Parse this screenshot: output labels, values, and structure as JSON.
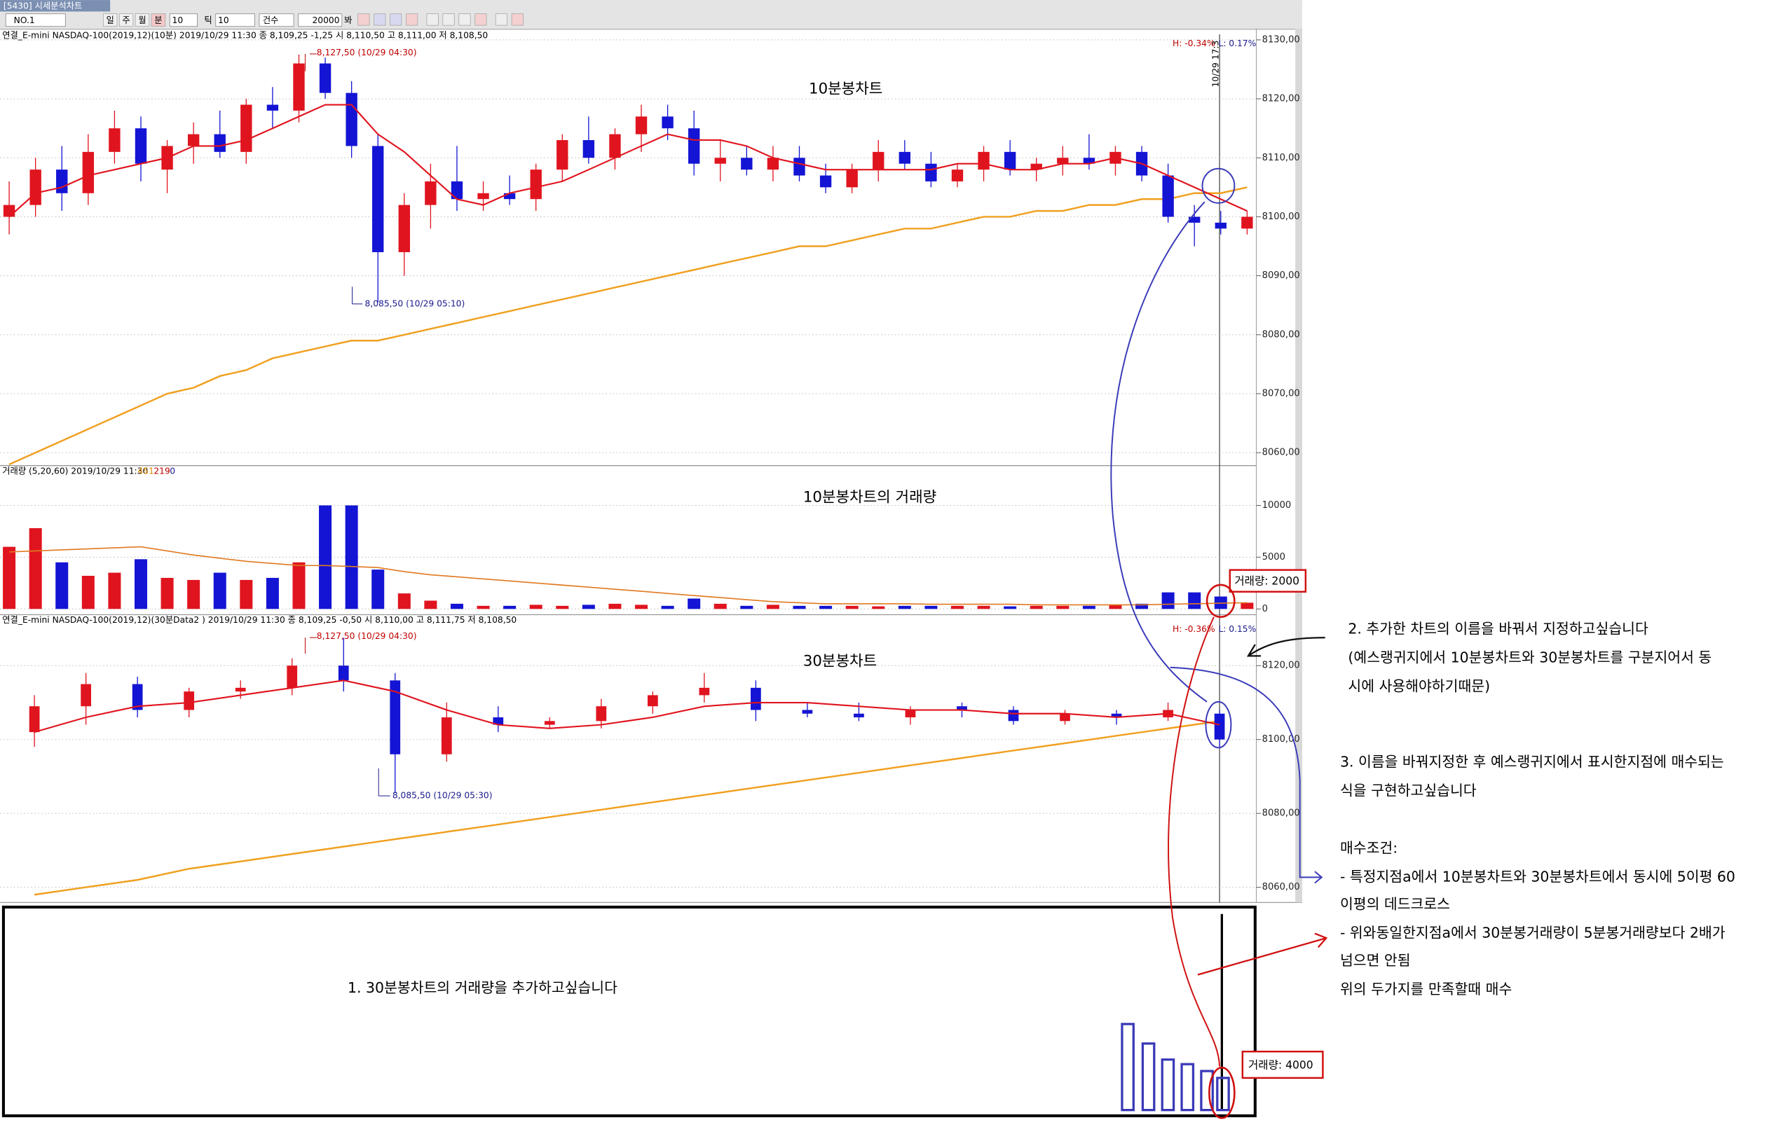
{
  "window_title": "[5430] 시세분석차트",
  "toolbar": {
    "code": "NO.1",
    "buttons": [
      "일",
      "주",
      "월",
      "분"
    ],
    "minute": "10",
    "tick_button": "틱",
    "tick": "10",
    "count_mode": "건수",
    "count": "20000",
    "view_button": "봐"
  },
  "price10": {
    "header": "연결_E-mini NASDAQ-100(2019,12)(10분) 2019/10/29 11:30  종 8,109,25 -1,25   시 8,110,50 고 8,111,00 저 8,108,50",
    "title": "10분봉차트",
    "high_label": "8,127,50 (10/29 04:30)",
    "low_label": "8,085,50 (10/29 05:10)",
    "h_pct": "H: -0.34%",
    "l_pct": "L: 0.17%",
    "cursor_time": "10/29 17:3",
    "ylim": [
      8058,
      8131.5
    ],
    "yticks": [
      {
        "value": 8130,
        "label": "8130,00"
      },
      {
        "value": 8120,
        "label": "8120,00"
      },
      {
        "value": 8110,
        "label": "8110,00"
      },
      {
        "value": 8100,
        "label": "8100,00"
      },
      {
        "value": 8090,
        "label": "8090,00"
      },
      {
        "value": 8080,
        "label": "8080,00"
      },
      {
        "value": 8070,
        "label": "8070,00"
      },
      {
        "value": 8060,
        "label": "8060,00"
      }
    ],
    "candles": [
      [
        8100,
        8106,
        8097,
        8102
      ],
      [
        8102,
        8110,
        8100,
        8108
      ],
      [
        8108,
        8112,
        8101,
        8104
      ],
      [
        8104,
        8114,
        8102,
        8111
      ],
      [
        8111,
        8118,
        8109,
        8115
      ],
      [
        8115,
        8117,
        8106,
        8109
      ],
      [
        8108,
        8113,
        8104,
        8112
      ],
      [
        8112,
        8116,
        8109,
        8114
      ],
      [
        8114,
        8118,
        8110,
        8111
      ],
      [
        8111,
        8120,
        8109,
        8119
      ],
      [
        8119,
        8122,
        8115,
        8118
      ],
      [
        8118,
        8127.5,
        8116,
        8126
      ],
      [
        8126,
        8127,
        8120,
        8121
      ],
      [
        8121,
        8123,
        8110,
        8112
      ],
      [
        8112,
        8114,
        8085.5,
        8094
      ],
      [
        8094,
        8104,
        8090,
        8102
      ],
      [
        8102,
        8109,
        8098,
        8106
      ],
      [
        8106,
        8112,
        8101,
        8103
      ],
      [
        8103,
        8106,
        8101,
        8104
      ],
      [
        8104,
        8107,
        8102,
        8103
      ],
      [
        8103,
        8109,
        8101,
        8108
      ],
      [
        8108,
        8114,
        8106,
        8113
      ],
      [
        8113,
        8117,
        8109,
        8110
      ],
      [
        8110,
        8115,
        8108,
        8114
      ],
      [
        8114,
        8119,
        8111,
        8117
      ],
      [
        8117,
        8119,
        8113,
        8115
      ],
      [
        8115,
        8118,
        8107,
        8109
      ],
      [
        8109,
        8113,
        8106,
        8110
      ],
      [
        8110,
        8112,
        8107,
        8108
      ],
      [
        8108,
        8112,
        8106,
        8110
      ],
      [
        8110,
        8112,
        8106,
        8107
      ],
      [
        8107,
        8109,
        8104,
        8105
      ],
      [
        8105,
        8109,
        8104,
        8108
      ],
      [
        8108,
        8113,
        8106,
        8111
      ],
      [
        8111,
        8113,
        8108,
        8109
      ],
      [
        8109,
        8111,
        8105,
        8106
      ],
      [
        8106,
        8109,
        8105,
        8108
      ],
      [
        8108,
        8112,
        8106,
        8111
      ],
      [
        8111,
        8113,
        8107,
        8108
      ],
      [
        8108,
        8110,
        8106,
        8109
      ],
      [
        8109,
        8112,
        8107,
        8110
      ],
      [
        8110,
        8114,
        8108,
        8109
      ],
      [
        8109,
        8112,
        8107,
        8111
      ],
      [
        8111,
        8112,
        8106,
        8107
      ],
      [
        8107,
        8109,
        8099,
        8100
      ],
      [
        8100,
        8102,
        8095,
        8099
      ],
      [
        8099,
        8101,
        8097,
        8098
      ],
      [
        8098,
        8101,
        8097,
        8100
      ]
    ],
    "ma_short": [
      8100,
      8104,
      8105,
      8107,
      8108,
      8109,
      8110,
      8112,
      8112,
      8113,
      8115,
      8117,
      8119,
      8119,
      8114,
      8111,
      8107,
      8103,
      8102,
      8104,
      8105,
      8106,
      8108,
      8110,
      8112,
      8114,
      8113,
      8113,
      8112,
      8110,
      8109,
      8108,
      8108,
      8108,
      8108,
      8108,
      8109,
      8109,
      8108,
      8108,
      8109,
      8109,
      8110,
      8109,
      8107,
      8105,
      8103,
      8101
    ],
    "ma_long": [
      8058,
      8060,
      8062,
      8064,
      8066,
      8068,
      8070,
      8071,
      8073,
      8074,
      8076,
      8077,
      8078,
      8079,
      8079,
      8080,
      8081,
      8082,
      8083,
      8084,
      8085,
      8086,
      8087,
      8088,
      8089,
      8090,
      8091,
      8092,
      8093,
      8094,
      8095,
      8095,
      8096,
      8097,
      8098,
      8098,
      8099,
      8100,
      8100,
      8101,
      8101,
      8102,
      8102,
      8103,
      8103,
      8104,
      8104,
      8105
    ]
  },
  "volume10": {
    "header": "거래량 (5,20,60) 2019/10/29 11:30",
    "h1": "451",
    "h2": "219",
    "h3": "0",
    "title": "10분봉차트의 거래량",
    "callout": "거래량: 2000",
    "ylim": [
      0,
      13400
    ],
    "yticks": [
      10000,
      5000,
      0
    ],
    "values": [
      6000,
      7800,
      4500,
      3200,
      3500,
      4800,
      3000,
      2800,
      3500,
      2800,
      3000,
      4500,
      10000,
      10000,
      3800,
      1500,
      800,
      500,
      300,
      300,
      400,
      300,
      400,
      500,
      400,
      300,
      1000,
      500,
      300,
      400,
      300,
      300,
      300,
      250,
      300,
      300,
      300,
      300,
      250,
      300,
      300,
      300,
      400,
      500,
      1600,
      1600,
      1200,
      600
    ],
    "ma": [
      5500,
      5600,
      5700,
      5800,
      5900,
      6000,
      5600,
      5200,
      4900,
      4600,
      4400,
      4200,
      4200,
      4100,
      4000,
      3600,
      3300,
      3100,
      2900,
      2700,
      2500,
      2300,
      2100,
      1900,
      1700,
      1500,
      1300,
      1100,
      900,
      700,
      600,
      500,
      500,
      500,
      500,
      450,
      450,
      450,
      450,
      400,
      400,
      400,
      400,
      400,
      450,
      500,
      550,
      600
    ]
  },
  "price30": {
    "header": "연결_E-mini NASDAQ-100(2019,12)(30분Data2 ) 2019/10/29 11:30  종 8,109,25 -0,50   시 8,110,00 고 8,111,75 저 8,108,50",
    "title": "30분봉차트",
    "high_label": "8,127,50 (10/29 04:30)",
    "low_label": "8,085,50 (10/29 05:30)",
    "h_pct": "H: -0.36%",
    "l_pct": "L: 0.15%",
    "ylim": [
      8056.5,
      8131
    ],
    "yticks": [
      {
        "value": 8120,
        "label": "8120,00"
      },
      {
        "value": 8100,
        "label": "8100,00"
      },
      {
        "value": 8080,
        "label": "8080,00"
      },
      {
        "value": 8060,
        "label": "8060,00"
      }
    ],
    "candles": [
      [
        8102,
        8112,
        8098,
        8109
      ],
      [
        8109,
        8118,
        8104,
        8115
      ],
      [
        8115,
        8117,
        8106,
        8108
      ],
      [
        8108,
        8114,
        8106,
        8113
      ],
      [
        8113,
        8116,
        8111,
        8114
      ],
      [
        8114,
        8122,
        8112,
        8120
      ],
      [
        8120,
        8127.5,
        8113,
        8116
      ],
      [
        8116,
        8118,
        8085.5,
        8096
      ],
      [
        8096,
        8110,
        8094,
        8106
      ],
      [
        8106,
        8109,
        8102,
        8104
      ],
      [
        8104,
        8106,
        8103,
        8105
      ],
      [
        8105,
        8111,
        8103,
        8109
      ],
      [
        8109,
        8113,
        8107,
        8112
      ],
      [
        8112,
        8118,
        8110,
        8114
      ],
      [
        8114,
        8116,
        8105,
        8108
      ],
      [
        8108,
        8110,
        8106,
        8107
      ],
      [
        8107,
        8110,
        8105,
        8106
      ],
      [
        8106,
        8109,
        8104,
        8108
      ],
      [
        8109,
        8110,
        8106,
        8108
      ],
      [
        8108,
        8109,
        8104,
        8105
      ],
      [
        8105,
        8108,
        8104,
        8107
      ],
      [
        8107,
        8108,
        8104,
        8106
      ],
      [
        8106,
        8110,
        8105,
        8108
      ],
      [
        8107,
        8108,
        8098,
        8100
      ]
    ],
    "ma_short": [
      8102,
      8106,
      8109,
      8110,
      8112,
      8114,
      8116,
      8113,
      8108,
      8104,
      8103,
      8104,
      8106,
      8109,
      8110,
      8110,
      8109,
      8108,
      8108,
      8107,
      8107,
      8106,
      8107,
      8104
    ],
    "ma_long": [
      8058,
      8060,
      8062,
      8065,
      8067,
      8069,
      8071,
      8073,
      8075,
      8077,
      8079,
      8081,
      8083,
      8085,
      8087,
      8089,
      8091,
      8093,
      8095,
      8097,
      8099,
      8101,
      8103,
      8105
    ]
  },
  "request_box": {
    "text": "1. 30분봉차트의 거래량을 추가하고싶습니다",
    "callout": "거래량: 4000"
  },
  "notes": [
    "2. 추가한 차트의 이름을 바꿔서 지정하고싶습니다",
    "(예스랭귀지에서  10분봉차트와 30분봉차트를 구분지어서 동",
    "시에 사용해야하기때문)",
    "3. 이름을 바꿔지정한 후 예스랭귀지에서 표시한지점에 매수되는",
    "식을 구현하고싶습니다",
    "매수조건:",
    "- 특정지점a에서 10분봉차트와 30분봉차트에서 동시에 5이평 60",
    "이평의 데드크로스",
    "- 위와동일한지점a에서 30분봉거래량이 5분봉거래량보다 2배가",
    "넘으면 안됨",
    "위의 두가지를 만족할때 매수"
  ]
}
